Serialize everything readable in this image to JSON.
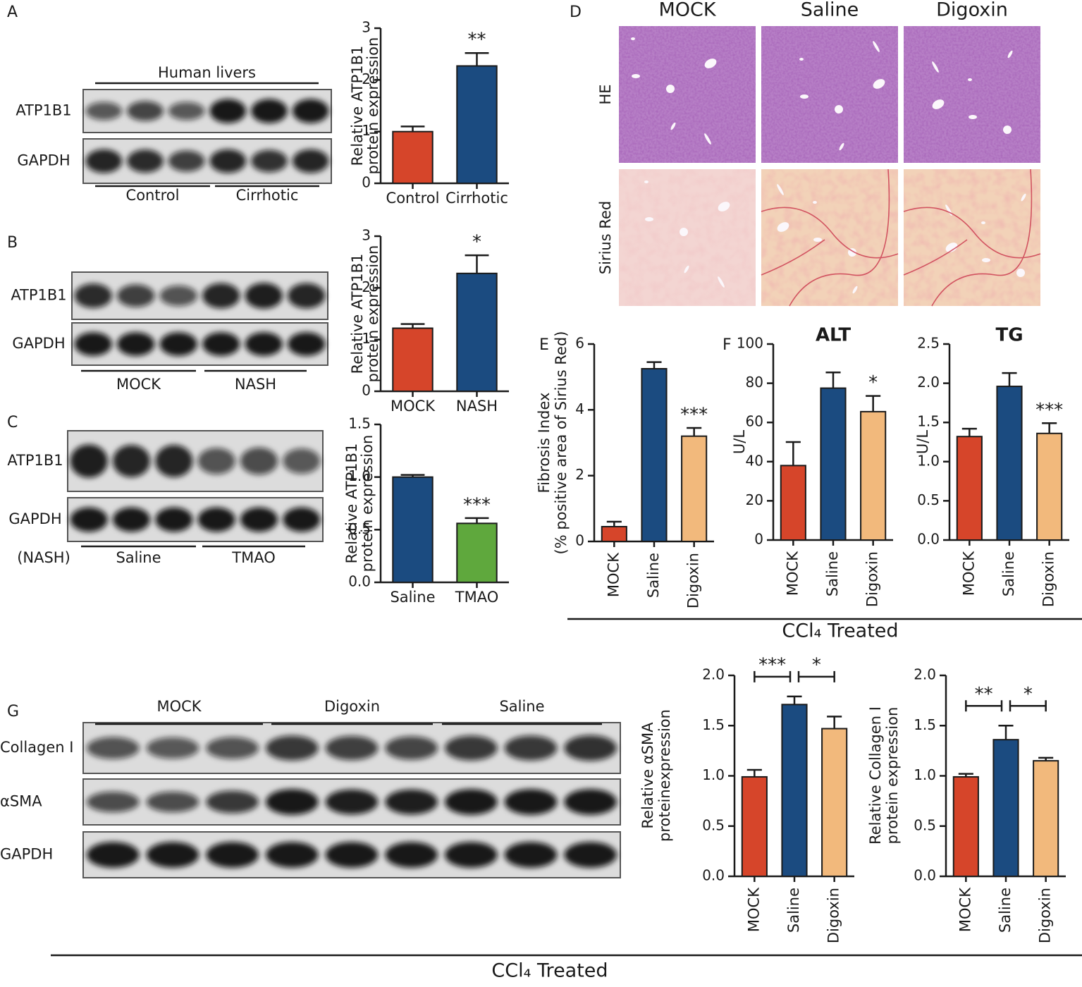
{
  "panel_labels": [
    "A",
    "B",
    "C",
    "D",
    "E",
    "F",
    "G"
  ],
  "blots": [
    {
      "bands": [
        "ATP1B1",
        "GAPDH"
      ],
      "header": "Human livers",
      "groups": [
        "Control",
        "Cirrhotic"
      ]
    },
    {
      "bands": [
        "ATP1B1",
        "GAPDH"
      ],
      "groups": [
        "MOCK",
        "NASH"
      ]
    },
    {
      "bands": [
        "ATP1B1",
        "GAPDH"
      ],
      "groups": [
        "Saline",
        "TMAO"
      ],
      "note": "(NASH)"
    },
    {
      "bands": [
        "Collagen I",
        "αSMA",
        "GAPDH"
      ],
      "groups": [
        "MOCK",
        "Digoxin",
        "Saline"
      ]
    }
  ],
  "histology": {
    "columns": [
      "MOCK",
      "Saline",
      "Digoxin"
    ],
    "rows": [
      "HE",
      "Sirius Red"
    ]
  },
  "footer_labels": [
    "CCl₄ Treated",
    "CCl₄ Treated"
  ],
  "chart_data": [
    {
      "type": "bar",
      "ylabel": [
        "Relative ATP1B1",
        "protein expression"
      ],
      "categories": [
        "Control",
        "Cirrhotic"
      ],
      "values": [
        1.0,
        2.27
      ],
      "errors": [
        0.1,
        0.25
      ],
      "colors": [
        "#d6452a",
        "#1b4b80"
      ],
      "ylim": [
        0,
        3
      ],
      "yticks": [
        0,
        1,
        2,
        3
      ],
      "significance": [
        null,
        "**"
      ]
    },
    {
      "type": "bar",
      "ylabel": [
        "Relative ATP1B1",
        "protein expression"
      ],
      "categories": [
        "MOCK",
        "NASH"
      ],
      "values": [
        1.22,
        2.28
      ],
      "errors": [
        0.08,
        0.35
      ],
      "colors": [
        "#d6452a",
        "#1b4b80"
      ],
      "ylim": [
        0,
        3
      ],
      "yticks": [
        0,
        1,
        2,
        3
      ],
      "significance": [
        null,
        "*"
      ]
    },
    {
      "type": "bar",
      "ylabel": [
        "Relative ATP1B1",
        "protein expression"
      ],
      "categories": [
        "Saline",
        "TMAO"
      ],
      "values": [
        1.0,
        0.56
      ],
      "errors": [
        0.02,
        0.05
      ],
      "colors": [
        "#1b4b80",
        "#5fa83d"
      ],
      "ylim": [
        0,
        1.5
      ],
      "yticks": [
        {
          "value": 0,
          "label": "0.0"
        },
        {
          "value": 0.5,
          "label": "0.5"
        },
        {
          "value": 1,
          "label": "1.0"
        },
        {
          "value": 1.5,
          "label": "1.5"
        }
      ],
      "significance": [
        null,
        "***"
      ]
    },
    {
      "type": "bar",
      "ylabel": [
        "Fibrosis Index",
        "(% positive area of Sirius Red)"
      ],
      "categories": [
        "MOCK",
        "Saline",
        "Digoxin"
      ],
      "values": [
        0.45,
        5.25,
        3.2
      ],
      "errors": [
        0.15,
        0.2,
        0.25
      ],
      "colors": [
        "#d6452a",
        "#1b4b80",
        "#f2b97c"
      ],
      "ylim": [
        0,
        6
      ],
      "yticks": [
        0,
        2,
        4,
        6
      ],
      "significance": [
        null,
        null,
        "***"
      ]
    },
    {
      "type": "bar",
      "title": "ALT",
      "ylabel": [
        "U/L"
      ],
      "categories": [
        "MOCK",
        "Saline",
        "Digoxin"
      ],
      "values": [
        38,
        77.5,
        65.5
      ],
      "errors": [
        12,
        8,
        8
      ],
      "colors": [
        "#d6452a",
        "#1b4b80",
        "#f2b97c"
      ],
      "ylim": [
        0,
        100
      ],
      "yticks": [
        0,
        20,
        40,
        60,
        80,
        100
      ],
      "significance": [
        null,
        null,
        "*"
      ]
    },
    {
      "type": "bar",
      "title": "TG",
      "ylabel": [
        "U/L"
      ],
      "categories": [
        "MOCK",
        "Saline",
        "Digoxin"
      ],
      "values": [
        1.32,
        1.96,
        1.36
      ],
      "errors": [
        0.1,
        0.17,
        0.13
      ],
      "colors": [
        "#d6452a",
        "#1b4b80",
        "#f2b97c"
      ],
      "ylim": [
        0,
        2.5
      ],
      "yticks": [
        {
          "value": 0,
          "label": "0.0"
        },
        {
          "value": 0.5,
          "label": "0.5"
        },
        {
          "value": 1,
          "label": "1.0"
        },
        {
          "value": 1.5,
          "label": "1.5"
        },
        {
          "value": 2,
          "label": "2.0"
        },
        {
          "value": 2.5,
          "label": "2.5"
        }
      ],
      "significance": [
        null,
        null,
        "***"
      ]
    },
    {
      "type": "bar",
      "ylabel": [
        "Relative αSMA",
        "proteinexpression"
      ],
      "categories": [
        "MOCK",
        "Saline",
        "Digoxin"
      ],
      "values": [
        0.99,
        1.71,
        1.47
      ],
      "errors": [
        0.07,
        0.08,
        0.12
      ],
      "colors": [
        "#d6452a",
        "#1b4b80",
        "#f2b97c"
      ],
      "ylim": [
        0,
        2
      ],
      "yticks": [
        {
          "value": 0,
          "label": "0.0"
        },
        {
          "value": 0.5,
          "label": "0.5"
        },
        {
          "value": 1,
          "label": "1.0"
        },
        {
          "value": 1.5,
          "label": "1.5"
        },
        {
          "value": 2,
          "label": "2.0"
        }
      ],
      "comparisons": [
        {
          "pair": [
            "MOCK",
            "Saline"
          ],
          "label": "***"
        },
        {
          "pair": [
            "Saline",
            "Digoxin"
          ],
          "label": "*"
        }
      ]
    },
    {
      "type": "bar",
      "ylabel": [
        "Relative Collagen I",
        "protein expression"
      ],
      "categories": [
        "MOCK",
        "Saline",
        "Digoxin"
      ],
      "values": [
        0.99,
        1.36,
        1.15
      ],
      "errors": [
        0.03,
        0.14,
        0.03
      ],
      "colors": [
        "#d6452a",
        "#1b4b80",
        "#f2b97c"
      ],
      "ylim": [
        0,
        2
      ],
      "yticks": [
        {
          "value": 0,
          "label": "0.0"
        },
        {
          "value": 0.5,
          "label": "0.5"
        },
        {
          "value": 1,
          "label": "1.0"
        },
        {
          "value": 1.5,
          "label": "1.5"
        },
        {
          "value": 2,
          "label": "2.0"
        }
      ],
      "comparisons": [
        {
          "pair": [
            "MOCK",
            "Saline"
          ],
          "label": "**"
        },
        {
          "pair": [
            "Saline",
            "Digoxin"
          ],
          "label": "*"
        }
      ]
    }
  ]
}
